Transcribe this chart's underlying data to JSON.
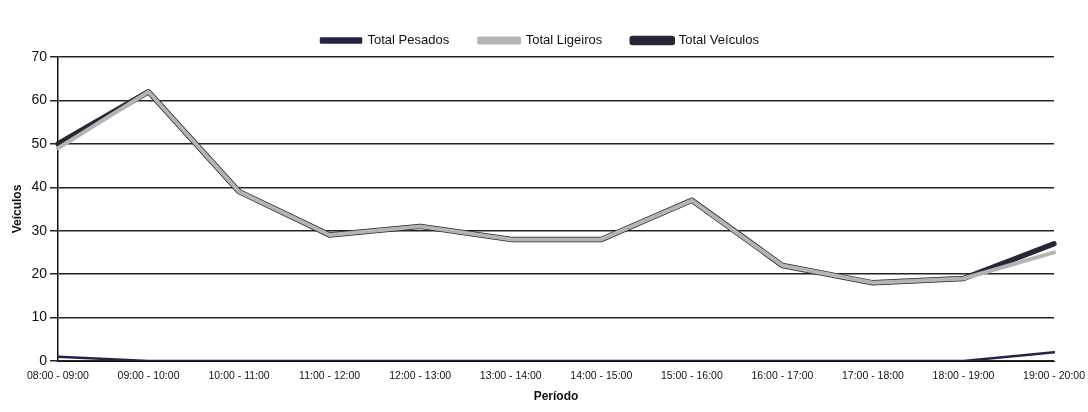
{
  "chart_data": {
    "type": "line",
    "xlabel": "Período",
    "ylabel": "Veículos",
    "categories": [
      "08:00 - 09:00",
      "09:00 - 10:00",
      "10:00 - 11:00",
      "11:00 - 12:00",
      "12:00 - 13:00",
      "13:00 - 14:00",
      "14:00 - 15:00",
      "15:00 - 16:00",
      "16:00 - 17:00",
      "17:00 - 18:00",
      "18:00 - 19:00",
      "19:00 - 20:00"
    ],
    "series": [
      {
        "name": "Total Pesados",
        "color": "#23234a",
        "values": [
          1,
          0,
          0,
          0,
          0,
          0,
          0,
          0,
          0,
          0,
          0,
          2
        ]
      },
      {
        "name": "Total Ligeiros",
        "color": "#b4b4b4",
        "values": [
          49,
          62,
          39,
          29,
          31,
          28,
          28,
          37,
          22,
          18,
          19,
          25
        ]
      },
      {
        "name": "Total Veículos",
        "color": "#262636",
        "values": [
          50,
          62,
          39,
          29,
          31,
          28,
          28,
          37,
          22,
          18,
          19,
          27
        ]
      }
    ],
    "ylim": [
      0,
      70
    ],
    "yticks": [
      0,
      10,
      20,
      30,
      40,
      50,
      60,
      70
    ],
    "grid": "y",
    "legend": "top",
    "marker": "none",
    "line_style": "solid"
  }
}
